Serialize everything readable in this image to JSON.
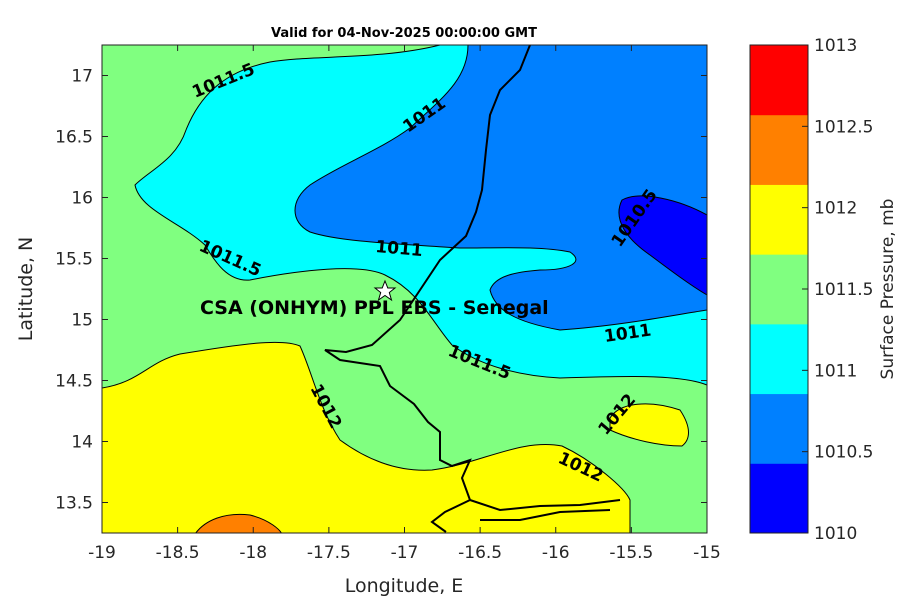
{
  "chart_data": {
    "type": "contour",
    "title": "Valid for 04-Nov-2025 00:00:00 GMT",
    "xlabel": "Longitude, E",
    "ylabel": "Latitude, N",
    "xlim": [
      -19,
      -15
    ],
    "ylim": [
      13.25,
      17.25
    ],
    "xticks": [
      "-19",
      "-18.5",
      "-18",
      "-17.5",
      "-17",
      "-16.5",
      "-16",
      "-15.5",
      "-15"
    ],
    "yticks": [
      "13.5",
      "14",
      "14.5",
      "15",
      "15.5",
      "16",
      "16.5",
      "17"
    ],
    "colorbar": {
      "label": "Surface Pressure, mb",
      "ticks": [
        "1010",
        "1010.5",
        "1011",
        "1011.5",
        "1012",
        "1012.5",
        "1013"
      ],
      "colors": [
        "#0000ff",
        "#0080ff",
        "#00ffff",
        "#80ff80",
        "#ffff00",
        "#ff8000",
        "#ff0000"
      ]
    },
    "contour_labels": [
      "1011.5",
      "1011",
      "1011",
      "1011.5",
      "1011",
      "1011.5",
      "1012",
      "1012",
      "1012",
      "1010.5"
    ],
    "station": {
      "label": "CSA (ONHYM) PPL EBS  - Senegal",
      "lon": -17.12,
      "lat": 15.23
    }
  }
}
